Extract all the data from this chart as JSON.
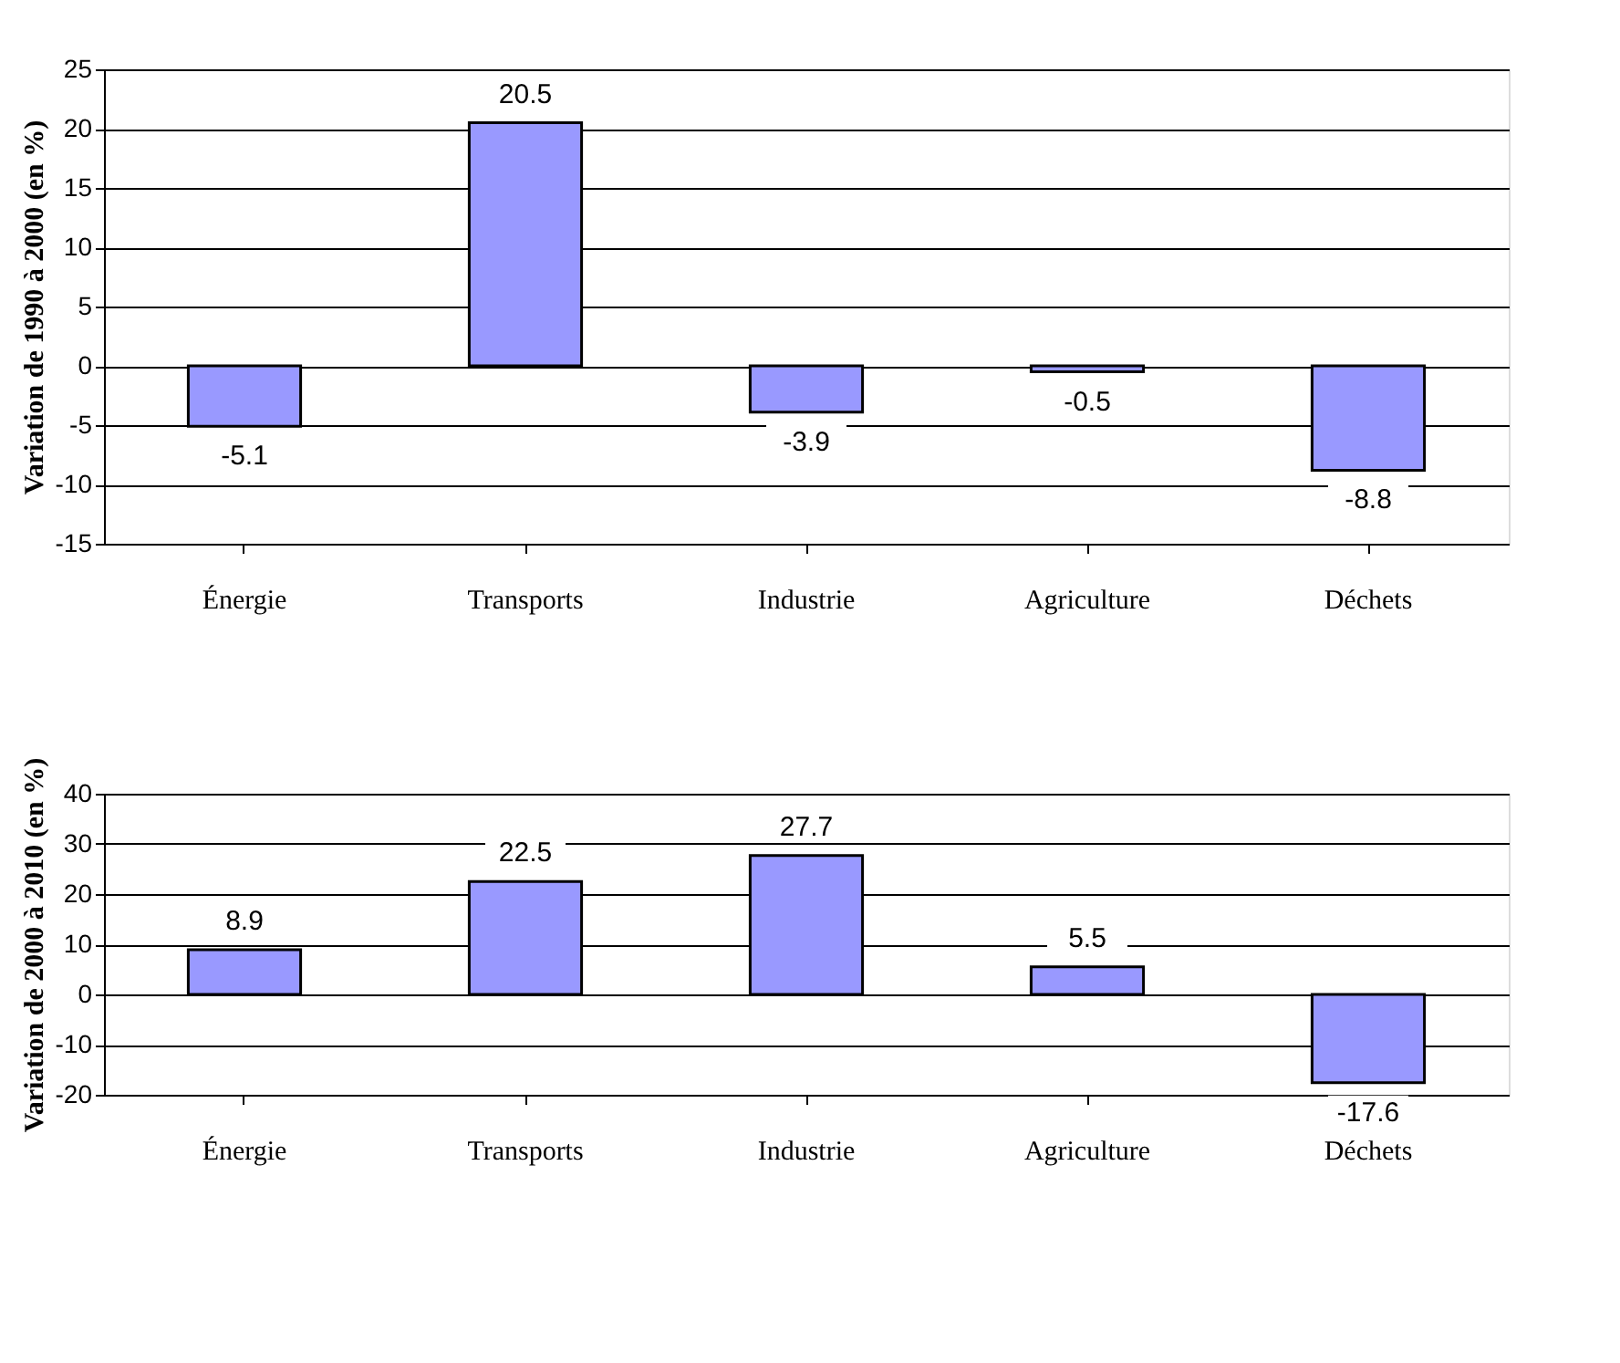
{
  "chart_data": [
    {
      "type": "bar",
      "ylabel": "Variation de 1990 à 2000 (en %)",
      "categories": [
        "Énergie",
        "Transports",
        "Industrie",
        "Agriculture",
        "Déchets"
      ],
      "series": [
        {
          "color": "#9999ff",
          "values": [
            -5.1,
            20.5,
            -3.9,
            -0.5,
            -8.8
          ]
        }
      ],
      "ylim": [
        -15,
        25
      ],
      "yticks": [
        -15,
        -10,
        -5,
        0,
        5,
        10,
        15,
        20,
        25
      ],
      "grid": "y",
      "data_labels": true,
      "legend": false
    },
    {
      "type": "bar",
      "ylabel": "Variation de  2000 à 2010 (en %)",
      "categories": [
        "Énergie",
        "Transports",
        "Industrie",
        "Agriculture",
        "Déchets"
      ],
      "series": [
        {
          "color": "#9999ff",
          "values": [
            8.9,
            22.5,
            27.7,
            5.5,
            -17.6
          ]
        }
      ],
      "ylim": [
        -20,
        40
      ],
      "yticks": [
        -20,
        -10,
        0,
        10,
        20,
        30,
        40
      ],
      "grid": "y",
      "data_labels": true,
      "legend": false
    }
  ]
}
